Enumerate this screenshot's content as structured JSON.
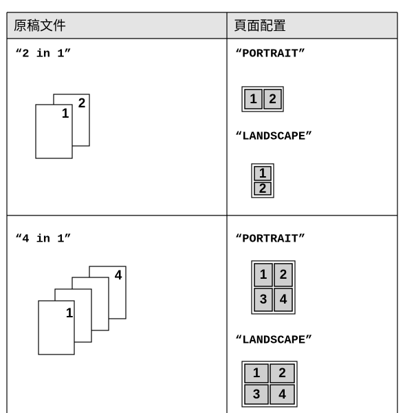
{
  "table": {
    "headers": [
      "原稿文件",
      "頁面配置"
    ],
    "rows": [
      {
        "mode": "“2 in 1”",
        "pages": [
          "1",
          "2"
        ],
        "layouts": [
          {
            "label": "“PORTRAIT”",
            "cells": [
              "1",
              "2"
            ]
          },
          {
            "label": "“LANDSCAPE”",
            "cells": [
              "1",
              "2"
            ]
          }
        ]
      },
      {
        "mode": "“4 in 1”",
        "pages": [
          "1",
          "4"
        ],
        "layouts": [
          {
            "label": "“PORTRAIT”",
            "cells": [
              "1",
              "2",
              "3",
              "4"
            ]
          },
          {
            "label": "“LANDSCAPE”",
            "cells": [
              "1",
              "2",
              "3",
              "4"
            ]
          }
        ]
      }
    ]
  }
}
